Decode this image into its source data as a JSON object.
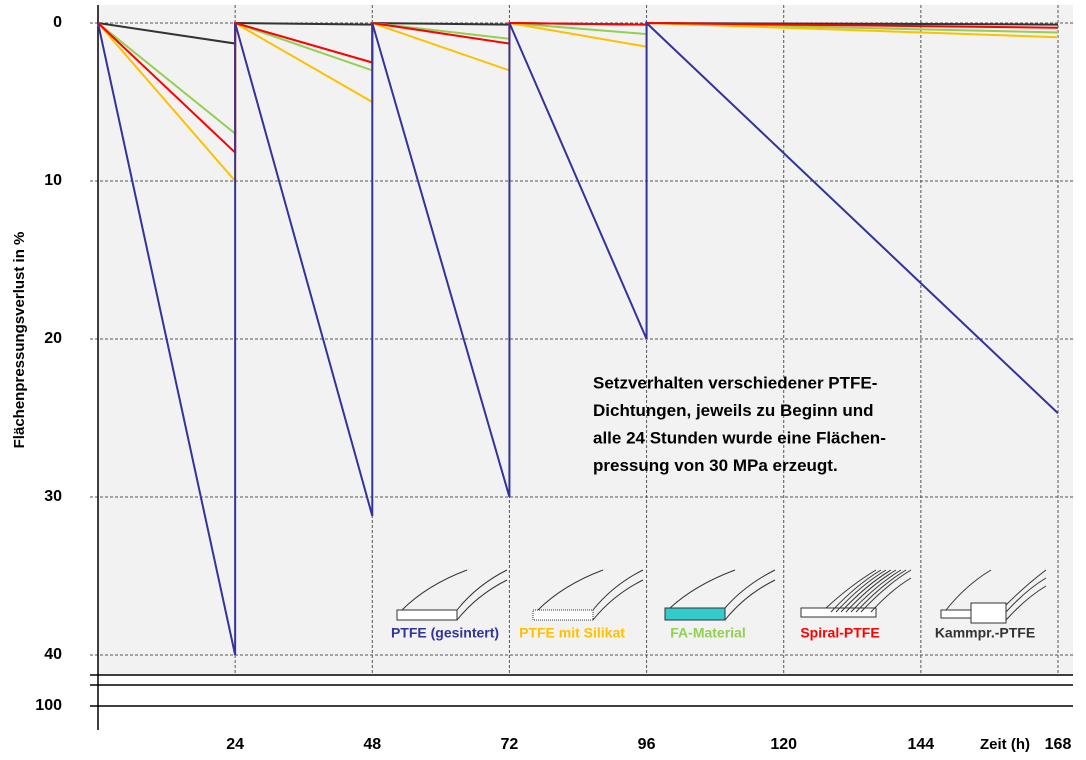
{
  "chart_data": {
    "type": "line",
    "y_label": "Flächenpressungsverlust in %",
    "x_label": "Zeit (h)",
    "annotation": [
      "Setzverhalten verschiedener  PTFE-",
      "Dichtungen, jeweils zu Beginn und",
      "alle 24 Stunden wurde eine Flächen-",
      "pressung von 30 MPa erzeugt."
    ],
    "x": [
      0,
      24,
      24,
      48,
      48,
      72,
      72,
      96,
      96,
      168
    ],
    "xlim": [
      0,
      168
    ],
    "xticks": [
      24,
      48,
      72,
      96,
      120,
      144,
      168
    ],
    "ylim": [
      0,
      40
    ],
    "yticks": [
      0,
      10,
      20,
      30,
      40,
      100
    ],
    "y_inverted": true,
    "axis_break": true,
    "grid": true,
    "series": [
      {
        "name": "PTFE (gesintert)",
        "color": "#333399",
        "values": [
          0,
          40,
          0,
          31.2,
          0,
          30,
          0,
          20,
          0,
          24.7
        ]
      },
      {
        "name": "PTFE mit Silikat",
        "color": "#ffc000",
        "values": [
          0,
          10,
          0,
          5,
          0,
          3,
          0,
          1.5,
          0,
          0.9
        ]
      },
      {
        "name": "FA-Material",
        "color": "#92d050",
        "values": [
          0,
          7,
          0,
          3,
          0,
          1,
          0,
          0.7,
          0,
          0.6
        ]
      },
      {
        "name": "Spiral-PTFE",
        "color": "#ff0000",
        "values": [
          0,
          8.2,
          0,
          2.5,
          0,
          1.3,
          0,
          0.1,
          0,
          0.3
        ]
      },
      {
        "name": "Kammpr.-PTFE",
        "color": "#333333",
        "values": [
          0,
          1.3,
          0,
          0.1,
          0,
          0.1,
          0,
          0.1,
          0,
          0.1
        ]
      }
    ]
  }
}
